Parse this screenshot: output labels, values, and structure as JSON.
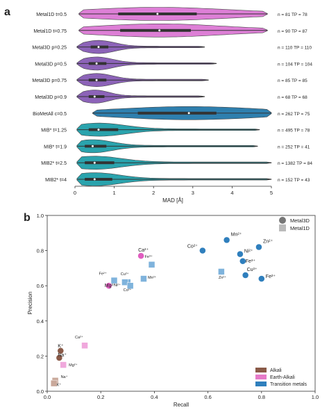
{
  "colors": {
    "pink": "#dd7fd6",
    "purple": "#8c63b8",
    "blue": "#2e7fae",
    "teal": "#2aa3ad",
    "metal3d_marker": "#2f7fbd",
    "metal1d_marker": "#7fb3dc",
    "alkali": "#8a5a48",
    "earth_alkali": "#e57ac8",
    "transition": "#2f7fbd"
  },
  "panel_a": {
    "label": "a",
    "xlabel": "MAD [Å]",
    "xticks": [
      "0",
      "1",
      "2",
      "3",
      "4",
      "5"
    ]
  },
  "panel_b": {
    "label": "b",
    "xlabel": "Recall",
    "ylabel": "Precision",
    "xticks": [
      "0.0",
      "0.2",
      "0.4",
      "0.6",
      "0.8",
      "1.0"
    ],
    "yticks": [
      "0.0",
      "0.2",
      "0.4",
      "0.6",
      "0.8",
      "1.0"
    ],
    "marker_legend": [
      "Metal3D",
      "Metal1D"
    ],
    "class_legend": [
      "Alkali",
      "Earth-Alkali",
      "Transition metals"
    ]
  },
  "chart_data": [
    {
      "type": "violin",
      "xlabel": "MAD [Å]",
      "xlim": [
        0,
        5
      ],
      "rows": [
        {
          "label": "Metal1D t=0.5",
          "color": "pink",
          "range": [
            0.1,
            4.9
          ],
          "q1": 1.1,
          "median": 2.1,
          "q3": 3.1,
          "annotation": "n = 81   TP = 78"
        },
        {
          "label": "Metal1D t=0.75",
          "color": "pink",
          "range": [
            0.1,
            4.9
          ],
          "q1": 1.15,
          "median": 2.15,
          "q3": 2.95,
          "annotation": "n = 90   TP = 87"
        },
        {
          "label": "Metal3D p=0.25",
          "color": "purple",
          "range": [
            0.05,
            3.3
          ],
          "q1": 0.4,
          "median": 0.6,
          "q3": 0.85,
          "annotation": "n = 110  TP = 110"
        },
        {
          "label": "Metal3D p=0.5",
          "color": "purple",
          "range": [
            0.05,
            3.6
          ],
          "q1": 0.35,
          "median": 0.55,
          "q3": 0.8,
          "annotation": "n = 104  TP = 104"
        },
        {
          "label": "Metal3D p=0.75",
          "color": "purple",
          "range": [
            0.05,
            3.4
          ],
          "q1": 0.35,
          "median": 0.55,
          "q3": 0.8,
          "annotation": "n = 85   TP = 85"
        },
        {
          "label": "Metal3D p=0.9",
          "color": "purple",
          "range": [
            0.05,
            3.3
          ],
          "q1": 0.35,
          "median": 0.5,
          "q3": 0.75,
          "annotation": "n = 68   TP = 68"
        },
        {
          "label": "BioMetAll c=0.5",
          "color": "blue",
          "range": [
            0.45,
            5.0
          ],
          "q1": 1.6,
          "median": 2.9,
          "q3": 3.6,
          "annotation": "n = 262  TP = 75"
        },
        {
          "label": "MIB* t=1.25",
          "color": "teal",
          "range": [
            0.05,
            4.7
          ],
          "q1": 0.35,
          "median": 0.6,
          "q3": 1.1,
          "annotation": "n = 495  TP = 78"
        },
        {
          "label": "MIB* t=1.9",
          "color": "teal",
          "range": [
            0.05,
            4.65
          ],
          "q1": 0.25,
          "median": 0.45,
          "q3": 0.8,
          "annotation": "n = 252  TP = 41"
        },
        {
          "label": "MIB2* t=2.5",
          "color": "teal",
          "range": [
            0.05,
            5.0
          ],
          "q1": 0.25,
          "median": 0.5,
          "q3": 1.0,
          "annotation": "n = 1382 TP = 84"
        },
        {
          "label": "MIB2* t=4",
          "color": "teal",
          "range": [
            0.05,
            5.0
          ],
          "q1": 0.25,
          "median": 0.5,
          "q3": 0.95,
          "annotation": "n = 152  TP = 43"
        }
      ]
    },
    {
      "type": "scatter",
      "xlabel": "Recall",
      "ylabel": "Precision",
      "xlim": [
        0,
        1
      ],
      "ylim": [
        0,
        1
      ],
      "points": [
        {
          "label": "Mn²⁺",
          "model": "Metal3D",
          "class": "transition",
          "x": 0.67,
          "y": 0.86
        },
        {
          "label": "Co²⁺",
          "model": "Metal3D",
          "class": "transition",
          "x": 0.58,
          "y": 0.8
        },
        {
          "label": "Zn²⁺",
          "model": "Metal3D",
          "class": "transition",
          "x": 0.79,
          "y": 0.82
        },
        {
          "label": "Ni²⁺",
          "model": "Metal3D",
          "class": "transition",
          "x": 0.72,
          "y": 0.78
        },
        {
          "label": "Fe³⁺",
          "model": "Metal3D",
          "class": "transition",
          "x": 0.73,
          "y": 0.74
        },
        {
          "label": "Cu²⁺",
          "model": "Metal3D",
          "class": "transition",
          "x": 0.74,
          "y": 0.66
        },
        {
          "label": "Fe²⁺",
          "model": "Metal3D",
          "class": "transition",
          "x": 0.8,
          "y": 0.64
        },
        {
          "label": "Zn²⁺",
          "model": "Metal1D",
          "class": "transition",
          "x": 0.65,
          "y": 0.68
        },
        {
          "label": "Fe³⁺",
          "model": "Metal1D",
          "class": "transition",
          "x": 0.39,
          "y": 0.72
        },
        {
          "label": "Ca²⁺",
          "model": "Metal3D",
          "class": "earth_alkali",
          "x": 0.35,
          "y": 0.77
        },
        {
          "label": "Fe²⁺",
          "model": "Metal1D",
          "class": "transition",
          "x": 0.25,
          "y": 0.63
        },
        {
          "label": "Cu²⁺",
          "model": "Metal1D",
          "class": "transition",
          "x": 0.3,
          "y": 0.62
        },
        {
          "label": "Mn²⁺",
          "model": "Metal1D",
          "class": "transition",
          "x": 0.36,
          "y": 0.64
        },
        {
          "label": "Mg²⁺",
          "model": "Metal3D",
          "class": "earth_alkali",
          "x": 0.23,
          "y": 0.6
        },
        {
          "label": "Ni²⁺",
          "model": "Metal1D",
          "class": "transition",
          "x": 0.29,
          "y": 0.62
        },
        {
          "label": "Co²⁺",
          "model": "Metal1D",
          "class": "transition",
          "x": 0.31,
          "y": 0.6
        },
        {
          "label": "Ca²⁺",
          "model": "Metal1D",
          "class": "earth_alkali",
          "x": 0.14,
          "y": 0.26
        },
        {
          "label": "K⁺",
          "model": "Metal3D",
          "class": "alkali",
          "x": 0.05,
          "y": 0.23
        },
        {
          "label": "Na⁺",
          "model": "Metal3D",
          "class": "alkali",
          "x": 0.045,
          "y": 0.19
        },
        {
          "label": "Mg²⁺",
          "model": "Metal1D",
          "class": "earth_alkali",
          "x": 0.06,
          "y": 0.15
        },
        {
          "label": "Na⁺",
          "model": "Metal1D",
          "class": "alkali",
          "x": 0.03,
          "y": 0.06
        },
        {
          "label": "K⁺",
          "model": "Metal1D",
          "class": "alkali",
          "x": 0.025,
          "y": 0.045
        }
      ]
    }
  ]
}
